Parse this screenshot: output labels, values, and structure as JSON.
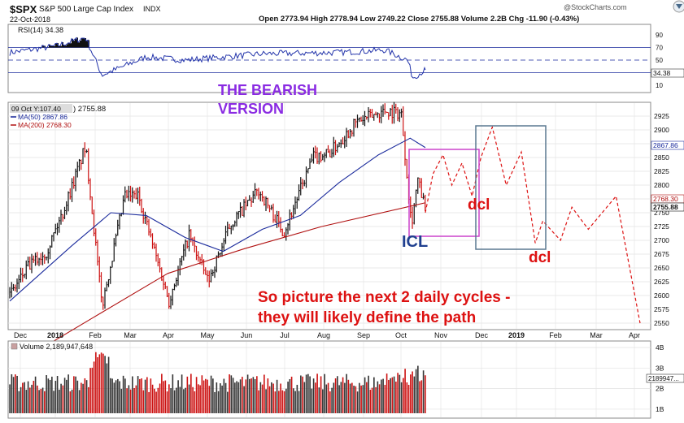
{
  "header": {
    "symbol": "$SPX",
    "name": "S&P 500 Large Cap Index",
    "exchange": "INDX",
    "date": "22-Oct-2018",
    "quote": "Open 2773.94  High 2778.94  Low 2749.22  Close 2755.88  Volume 2.2B  Chg -11.90 (-0.43%)",
    "change_icon": "down-triangle-icon",
    "watermark": "@StockCharts.com"
  },
  "rsi": {
    "label": "RSI(14) 34.38",
    "last_tag": "34.38",
    "levels": [
      70,
      50,
      30
    ],
    "ticks": [
      "90",
      "70",
      "50",
      "30",
      "10"
    ]
  },
  "price": {
    "date_label": "09 Oct Y:107.40",
    "close_label": ") 2755.88",
    "ma50_label": "MA(50) 2867.86",
    "ma200_label": "MA(200) 2768.30",
    "ticks": [
      "2925",
      "2900",
      "2875",
      "2850",
      "2825",
      "2800",
      "2775",
      "2750",
      "2725",
      "2700",
      "2675",
      "2650",
      "2625",
      "2600",
      "2575",
      "2550"
    ],
    "tag_ma50": "2867.86",
    "tag_ma200": "2768.30",
    "tag_close": "2755.88"
  },
  "volume": {
    "label": "Volume 2,189,947,648",
    "ticks": [
      "4B",
      "3B",
      "2B",
      "1B"
    ],
    "last_tag": "2189947..."
  },
  "x_axis": [
    "Dec",
    "2018",
    "Feb",
    "Mar",
    "Apr",
    "May",
    "Jun",
    "Jul",
    "Aug",
    "Sep",
    "Oct",
    "Nov",
    "Dec",
    "2019",
    "Feb",
    "Mar",
    "Apr"
  ],
  "annotations": {
    "bearish_line1": "THE BEARISH",
    "bearish_line2": "VERSION",
    "icl": "ICL",
    "dcl1": "dcl",
    "dcl2": "dcl",
    "picture_line1": "So picture the next 2 daily cycles -",
    "picture_line2": "they will likely define the path"
  },
  "colors": {
    "ma50": "#1a2a9c",
    "ma200": "#b01010",
    "rsi": "#2233aa",
    "up": "#111111",
    "down": "#cc1111",
    "projection": "#dd1111",
    "icl_box": "#cc44cc",
    "dcl_box": "#5a7890",
    "purple_text": "#8a2be2",
    "red_text": "#dd1111",
    "blue_text": "#1f3f8f"
  },
  "chart_data": {
    "type": "line",
    "title": "$SPX S&P 500 Large Cap Index",
    "series": [
      {
        "name": "Close",
        "x": [
          "2017-11-27",
          "2017-12-11",
          "2017-12-26",
          "2018-01-08",
          "2018-01-26",
          "2018-02-08",
          "2018-02-26",
          "2018-03-09",
          "2018-04-02",
          "2018-04-18",
          "2018-05-03",
          "2018-05-21",
          "2018-06-12",
          "2018-07-02",
          "2018-07-25",
          "2018-08-08",
          "2018-08-29",
          "2018-09-20",
          "2018-10-03",
          "2018-10-11",
          "2018-10-16",
          "2018-10-22"
        ],
        "values": [
          2600,
          2650,
          2680,
          2750,
          2870,
          2580,
          2780,
          2780,
          2590,
          2710,
          2625,
          2730,
          2790,
          2715,
          2850,
          2860,
          2915,
          2935,
          2930,
          2730,
          2810,
          2755
        ]
      },
      {
        "name": "MA(50)",
        "x": [
          "2017-11-27",
          "2018-01-15",
          "2018-02-15",
          "2018-03-15",
          "2018-04-15",
          "2018-05-15",
          "2018-06-15",
          "2018-07-15",
          "2018-08-15",
          "2018-09-15",
          "2018-10-10",
          "2018-10-22"
        ],
        "values": [
          2590,
          2690,
          2750,
          2745,
          2705,
          2680,
          2720,
          2745,
          2805,
          2855,
          2885,
          2868
        ]
      },
      {
        "name": "MA(200)",
        "x": [
          "2017-11-27",
          "2018-02-01",
          "2018-04-01",
          "2018-06-01",
          "2018-08-01",
          "2018-10-22"
        ],
        "values": [
          2470,
          2560,
          2640,
          2685,
          2725,
          2768
        ]
      },
      {
        "name": "Projection",
        "x": [
          "2018-10-22",
          "2018-10-28",
          "2018-11-05",
          "2018-11-12",
          "2018-11-20",
          "2018-11-28",
          "2018-12-05",
          "2018-12-14",
          "2018-12-25",
          "2019-01-06",
          "2019-01-17",
          "2019-01-23",
          "2019-02-06",
          "2019-02-15",
          "2019-02-28",
          "2019-03-22",
          "2019-04-10"
        ],
        "values": [
          2750,
          2820,
          2855,
          2800,
          2840,
          2780,
          2850,
          2905,
          2800,
          2860,
          2695,
          2735,
          2700,
          2760,
          2720,
          2780,
          2550
        ]
      }
    ],
    "rsi_series": {
      "name": "RSI(14)",
      "x": [
        "2017-11-27",
        "2018-01-02",
        "2018-01-26",
        "2018-02-08",
        "2018-03-15",
        "2018-04-15",
        "2018-06-15",
        "2018-08-15",
        "2018-09-20",
        "2018-10-08",
        "2018-10-12",
        "2018-10-22"
      ],
      "values": [
        62,
        72,
        86,
        26,
        55,
        50,
        60,
        62,
        66,
        50,
        22,
        34.38
      ]
    },
    "xlabel": "",
    "ylabel": "",
    "ylim": [
      2530,
      2950
    ],
    "grid": true
  }
}
